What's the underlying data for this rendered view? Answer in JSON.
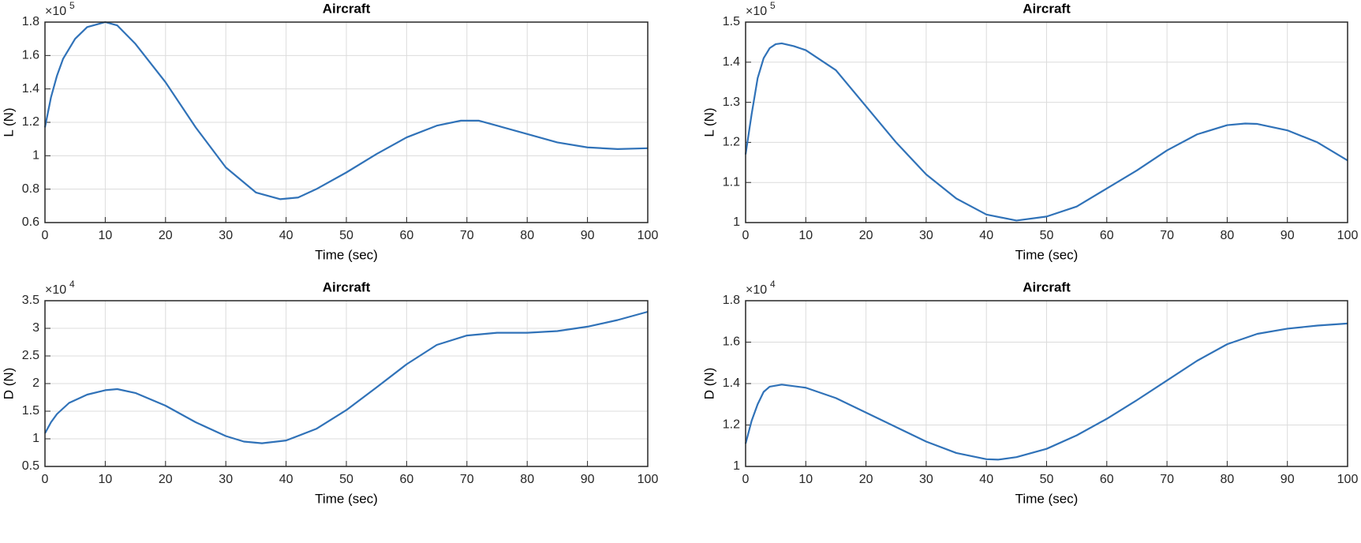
{
  "chart_data": [
    {
      "type": "line",
      "title": "Aircraft",
      "x_label": "Time (sec)",
      "y_label": "L (N)",
      "y_multiplier": "×10",
      "y_exponent": "5",
      "xlim": [
        0,
        100
      ],
      "xticks": [
        0,
        10,
        20,
        30,
        40,
        50,
        60,
        70,
        80,
        90,
        100
      ],
      "ylim": [
        0.6,
        1.8
      ],
      "yticks": [
        0.6,
        0.8,
        1,
        1.2,
        1.4,
        1.6,
        1.8
      ],
      "grid": true,
      "series": [
        {
          "color": "#3072b8",
          "x": [
            0,
            1,
            2,
            3,
            5,
            7,
            10,
            12,
            15,
            20,
            25,
            30,
            35,
            39,
            42,
            45,
            50,
            55,
            60,
            65,
            69,
            72,
            75,
            80,
            85,
            90,
            95,
            100
          ],
          "values": [
            1.17,
            1.35,
            1.48,
            1.58,
            1.7,
            1.77,
            1.8,
            1.78,
            1.67,
            1.44,
            1.17,
            0.93,
            0.78,
            0.74,
            0.75,
            0.8,
            0.9,
            1.01,
            1.11,
            1.18,
            1.21,
            1.21,
            1.18,
            1.13,
            1.08,
            1.05,
            1.04,
            1.045
          ]
        }
      ]
    },
    {
      "type": "line",
      "title": "Aircraft",
      "x_label": "Time (sec)",
      "y_label": "L (N)",
      "y_multiplier": "×10",
      "y_exponent": "5",
      "xlim": [
        0,
        100
      ],
      "xticks": [
        0,
        10,
        20,
        30,
        40,
        50,
        60,
        70,
        80,
        90,
        100
      ],
      "ylim": [
        1,
        1.5
      ],
      "yticks": [
        1,
        1.1,
        1.2,
        1.3,
        1.4,
        1.5
      ],
      "grid": true,
      "series": [
        {
          "color": "#3072b8",
          "x": [
            0,
            1,
            2,
            3,
            4,
            5,
            6,
            8,
            10,
            15,
            20,
            25,
            30,
            35,
            40,
            45,
            50,
            55,
            60,
            65,
            70,
            75,
            80,
            83,
            85,
            90,
            95,
            100
          ],
          "values": [
            1.17,
            1.27,
            1.36,
            1.41,
            1.435,
            1.445,
            1.447,
            1.44,
            1.43,
            1.38,
            1.29,
            1.2,
            1.12,
            1.06,
            1.02,
            1.005,
            1.015,
            1.04,
            1.085,
            1.13,
            1.18,
            1.22,
            1.243,
            1.247,
            1.246,
            1.23,
            1.2,
            1.155
          ]
        }
      ]
    },
    {
      "type": "line",
      "title": "Aircraft",
      "x_label": "Time (sec)",
      "y_label": "D (N)",
      "y_multiplier": "×10",
      "y_exponent": "4",
      "xlim": [
        0,
        100
      ],
      "xticks": [
        0,
        10,
        20,
        30,
        40,
        50,
        60,
        70,
        80,
        90,
        100
      ],
      "ylim": [
        0.5,
        3.5
      ],
      "yticks": [
        0.5,
        1,
        1.5,
        2,
        2.5,
        3,
        3.5
      ],
      "grid": true,
      "series": [
        {
          "color": "#3072b8",
          "x": [
            0,
            1,
            2,
            4,
            7,
            10,
            12,
            15,
            20,
            25,
            30,
            33,
            36,
            40,
            45,
            50,
            55,
            60,
            65,
            70,
            75,
            80,
            85,
            90,
            95,
            100
          ],
          "values": [
            1.1,
            1.3,
            1.45,
            1.65,
            1.8,
            1.88,
            1.9,
            1.83,
            1.6,
            1.3,
            1.05,
            0.95,
            0.92,
            0.97,
            1.18,
            1.52,
            1.93,
            2.35,
            2.7,
            2.87,
            2.92,
            2.92,
            2.95,
            3.03,
            3.15,
            3.3
          ]
        }
      ]
    },
    {
      "type": "line",
      "title": "Aircraft",
      "x_label": "Time (sec)",
      "y_label": "D (N)",
      "y_multiplier": "×10",
      "y_exponent": "4",
      "xlim": [
        0,
        100
      ],
      "xticks": [
        0,
        10,
        20,
        30,
        40,
        50,
        60,
        70,
        80,
        90,
        100
      ],
      "ylim": [
        1,
        1.8
      ],
      "yticks": [
        1,
        1.2,
        1.4,
        1.6,
        1.8
      ],
      "grid": true,
      "series": [
        {
          "color": "#3072b8",
          "x": [
            0,
            1,
            2,
            3,
            4,
            6,
            10,
            15,
            20,
            25,
            30,
            35,
            40,
            42,
            45,
            50,
            55,
            60,
            65,
            70,
            75,
            80,
            85,
            90,
            95,
            100
          ],
          "values": [
            1.11,
            1.22,
            1.3,
            1.36,
            1.385,
            1.395,
            1.38,
            1.33,
            1.26,
            1.19,
            1.12,
            1.065,
            1.035,
            1.033,
            1.045,
            1.085,
            1.15,
            1.23,
            1.32,
            1.415,
            1.51,
            1.59,
            1.64,
            1.665,
            1.68,
            1.69
          ]
        }
      ]
    }
  ]
}
